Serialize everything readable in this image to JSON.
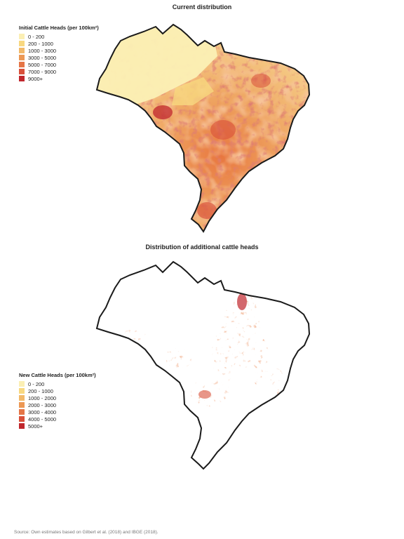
{
  "maps": [
    {
      "title": "Current distribution",
      "legend_title": "Initial Cattle Heads (per 100km²)",
      "classes": [
        {
          "label": "0 - 200",
          "color": "#fbefb4"
        },
        {
          "label": "200 - 1000",
          "color": "#f8d880"
        },
        {
          "label": "1000 - 3000",
          "color": "#f2b96a"
        },
        {
          "label": "3000 - 5000",
          "color": "#ec9855"
        },
        {
          "label": "5000 - 7000",
          "color": "#e57546"
        },
        {
          "label": "7000 - 9000",
          "color": "#d9503a"
        },
        {
          "label": "9000+",
          "color": "#c0272d"
        }
      ]
    },
    {
      "title": "Distribution of additional cattle heads",
      "legend_title": "New Cattle Heads (per 100km²)",
      "classes": [
        {
          "label": "0 - 200",
          "color": "#fbefb4"
        },
        {
          "label": "200 - 1000",
          "color": "#f8d880"
        },
        {
          "label": "1000 - 2000",
          "color": "#f2b96a"
        },
        {
          "label": "2000 - 3000",
          "color": "#ec9855"
        },
        {
          "label": "3000 - 4000",
          "color": "#e57546"
        },
        {
          "label": "4000 - 5000",
          "color": "#d9503a"
        },
        {
          "label": "5000+",
          "color": "#c0272d"
        }
      ]
    }
  ],
  "source": "Source: Own estimates based on Gilbert et al. (2018) and IBGE (2018)."
}
